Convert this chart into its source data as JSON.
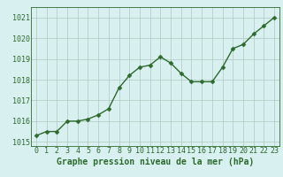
{
  "x": [
    0,
    1,
    2,
    3,
    4,
    5,
    6,
    7,
    8,
    9,
    10,
    11,
    12,
    13,
    14,
    15,
    16,
    17,
    18,
    19,
    20,
    21,
    22,
    23
  ],
  "y": [
    1015.3,
    1015.5,
    1015.5,
    1016.0,
    1016.0,
    1016.1,
    1016.3,
    1016.6,
    1017.6,
    1018.2,
    1018.6,
    1018.7,
    1019.1,
    1018.8,
    1018.3,
    1017.9,
    1017.9,
    1017.9,
    1018.6,
    1019.5,
    1019.7,
    1020.2,
    1020.6,
    1021.0
  ],
  "line_color": "#2d6a2d",
  "marker_color": "#2d6a2d",
  "bg_color": "#d8f0f0",
  "grid_color": "#b0c8c0",
  "axis_color": "#2d6a2d",
  "xlabel": "Graphe pression niveau de la mer (hPa)",
  "xlabel_color": "#2d6a2d",
  "tick_color": "#2d6a2d",
  "ylim": [
    1014.8,
    1021.5
  ],
  "yticks": [
    1015,
    1016,
    1017,
    1018,
    1019,
    1020,
    1021
  ],
  "xticks": [
    0,
    1,
    2,
    3,
    4,
    5,
    6,
    7,
    8,
    9,
    10,
    11,
    12,
    13,
    14,
    15,
    16,
    17,
    18,
    19,
    20,
    21,
    22,
    23
  ],
  "font_size_xlabel": 7.0,
  "font_size_ticks": 6.0,
  "line_width": 1.0,
  "marker_size": 2.5
}
